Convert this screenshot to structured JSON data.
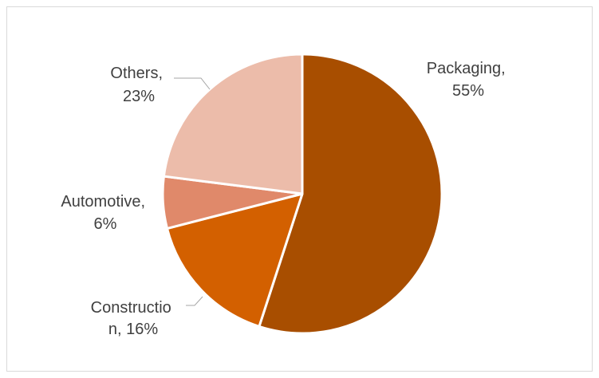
{
  "chart_data": {
    "type": "pie",
    "title": "",
    "categories": [
      "Packaging",
      "Construction",
      "Automotive",
      "Others"
    ],
    "values": [
      55,
      16,
      6,
      23
    ],
    "unit": "%",
    "colors": [
      "#a84e00",
      "#d36000",
      "#e0896a",
      "#ecbcaa"
    ],
    "start_angle_deg": 0,
    "direction": "clockwise",
    "legend": "none",
    "labels": [
      {
        "lines": [
          "Packaging,",
          "55%"
        ]
      },
      {
        "lines": [
          "Constructio",
          "n, 16%"
        ]
      },
      {
        "lines": [
          "Automotive,",
          "6%"
        ]
      },
      {
        "lines": [
          "Others,",
          "23%"
        ]
      }
    ]
  }
}
